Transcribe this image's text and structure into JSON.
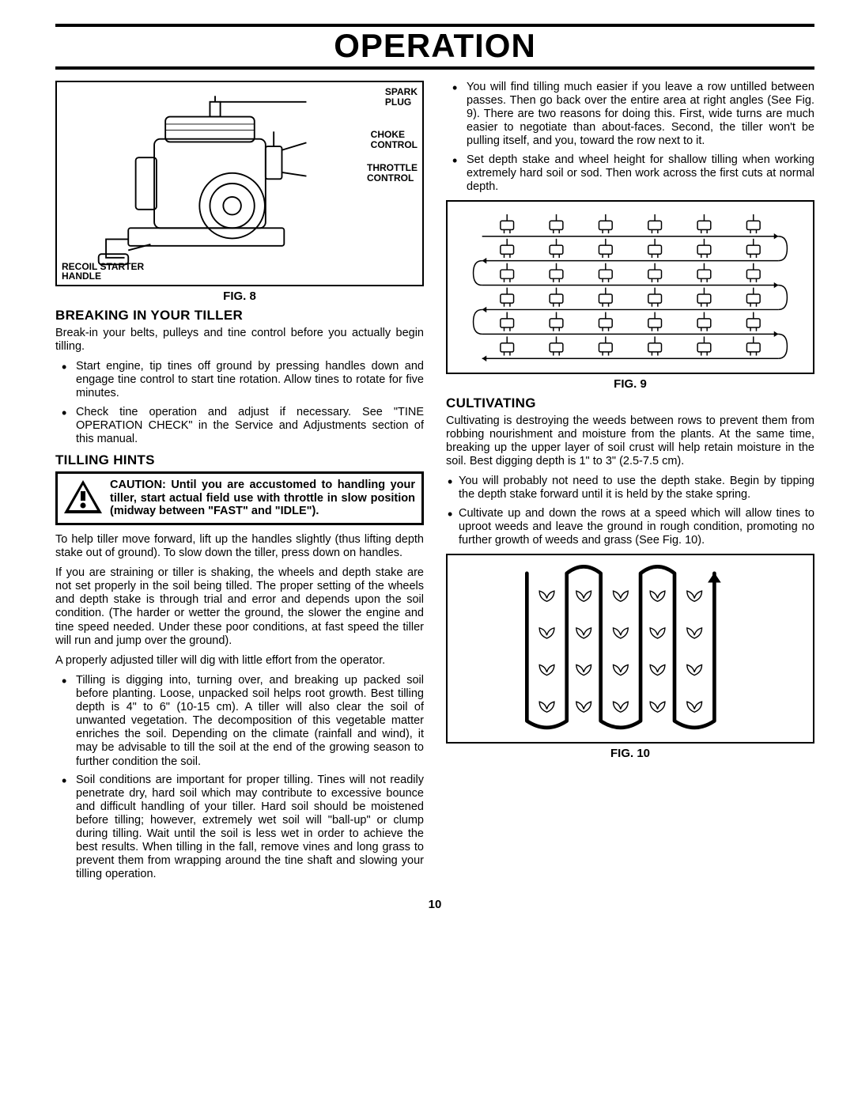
{
  "page_title": "OPERATION",
  "page_number": "10",
  "fig8": {
    "caption": "FIG. 8",
    "labels": {
      "spark_plug": "SPARK\nPLUG",
      "choke_control": "CHOKE\nCONTROL",
      "throttle_control": "THROTTLE\nCONTROL",
      "recoil_starter_handle": "RECOIL STARTER\nHANDLE"
    },
    "stroke": "#000000",
    "fill": "#ffffff"
  },
  "breaking_in": {
    "heading": "BREAKING IN YOUR TILLER",
    "intro": "Break-in your belts, pulleys and tine control before you actually begin tilling.",
    "bullets": [
      "Start engine, tip tines off ground by pressing handles down and engage tine control to start tine rotation. Allow tines to rotate for five minutes.",
      "Check tine operation and adjust if necessary. See \"TINE OPERATION CHECK\" in the Service and Adjustments section of this manual."
    ]
  },
  "tilling_hints": {
    "heading": "TILLING HINTS",
    "caution": "CAUTION: Until you are accustomed to handling your tiller, start actual field use with throttle in slow position (midway between \"FAST\" and \"IDLE\").",
    "p1": "To help tiller move forward, lift up the handles slightly (thus lifting depth stake out of ground). To slow down the tiller, press down on handles.",
    "p2": "If you are straining or tiller is shaking, the wheels and depth stake are not set properly in the soil being tilled. The proper setting of the wheels and depth stake is through trial and error and depends upon the soil condition. (The harder or wetter the ground, the slower the engine and tine speed needed. Under these poor conditions, at fast speed the tiller will run and jump over the ground).",
    "p3": "A properly adjusted tiller will dig with little effort from the operator.",
    "bullets": [
      "Tilling is digging into, turning over, and breaking up packed soil before planting. Loose, unpacked soil helps root growth. Best tilling depth is 4\" to 6\" (10-15 cm). A tiller will also clear the soil of unwanted vegetation. The decomposition of this vegetable matter enriches the soil. Depending on the climate (rainfall and wind), it may be advisable to till the soil at the end of the growing season to further condition the soil.",
      "Soil conditions are important for proper tilling. Tines will not readily penetrate dry, hard soil which may contribute to excessive bounce and difficult handling of your tiller. Hard soil should be moistened before tilling; however, extremely wet soil will \"ball-up\" or clump during tilling. Wait until the soil is less wet in order to achieve the best results. When tilling in the fall, remove vines and long grass to prevent them from wrapping around the tine shaft and slowing your tilling operation."
    ]
  },
  "right_top_bullets": [
    "You will find tilling much easier if you leave a row untilled between passes. Then go back over the entire area at right angles (See Fig. 9). There are two reasons for doing this. First, wide turns are much easier to negotiate than about-faces. Second, the tiller won't be pulling itself, and you, toward the row next to it.",
    "Set depth stake and wheel height for shallow tilling when working extremely hard soil or sod. Then work across the first cuts at normal depth."
  ],
  "fig9": {
    "caption": "FIG. 9",
    "rows": 6,
    "tillers_per_row": 6,
    "stroke": "#000000",
    "arrow": "#000000"
  },
  "cultivating": {
    "heading": "CULTIVATING",
    "intro": "Cultivating is destroying the weeds between rows to prevent them from robbing nourishment and moisture from the plants. At the same time, breaking up the upper layer of soil crust will help retain moisture in the soil. Best digging depth is 1\" to 3\" (2.5-7.5 cm).",
    "bullets": [
      "You will probably not need to use the depth stake. Begin by tipping the depth stake forward until it is held by the stake spring.",
      "Cultivate up and down the rows at a speed which will allow tines to uproot weeds and leave the ground in rough condition, promoting no further growth of weeds and grass (See Fig. 10)."
    ]
  },
  "fig10": {
    "caption": "FIG. 10",
    "columns": 3,
    "plants_per_column": 5,
    "plant_rows": 4,
    "stroke": "#000000",
    "line_width": 5
  },
  "colors": {
    "text": "#000000",
    "bg": "#ffffff",
    "border": "#000000"
  },
  "fonts": {
    "title_pt": 42,
    "heading_pt": 17,
    "body_pt": 14.5,
    "caption_pt": 15
  }
}
